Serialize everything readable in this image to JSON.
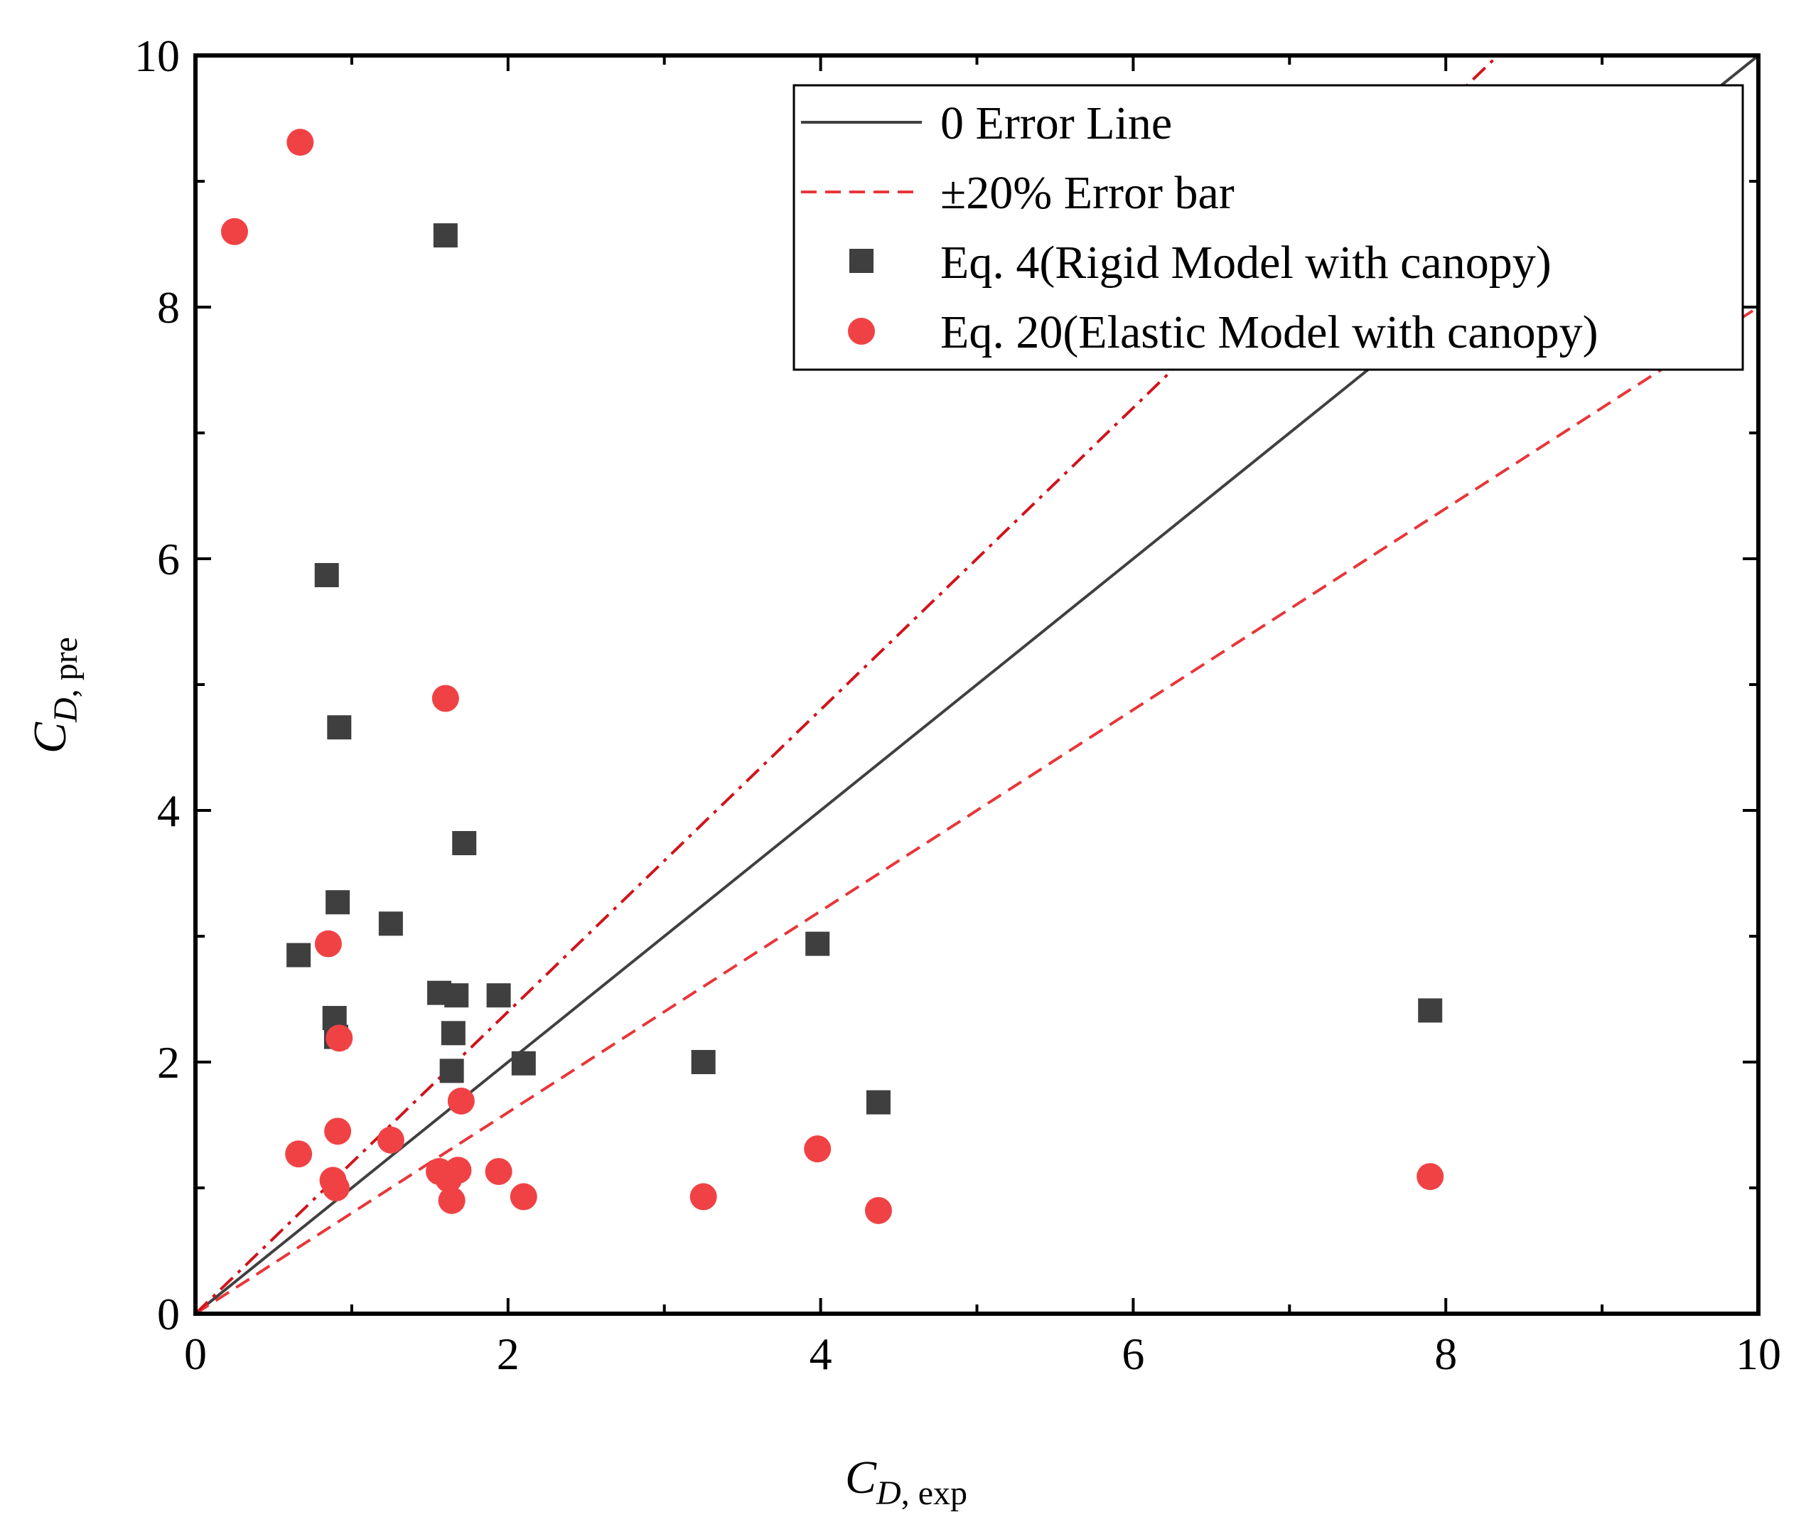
{
  "chart_data": {
    "type": "scatter",
    "title": "",
    "xlabel": {
      "main": "C",
      "sub1": "D",
      "sub2": ", exp"
    },
    "ylabel": {
      "main": "C",
      "sub1": "D",
      "sub2": ", pre"
    },
    "xlim": [
      0,
      10
    ],
    "ylim": [
      0,
      10
    ],
    "xticks": [
      0,
      2,
      4,
      6,
      8,
      10
    ],
    "yticks": [
      0,
      2,
      4,
      6,
      8,
      10
    ],
    "grid": false,
    "legend_position": "top-right",
    "lines": [
      {
        "name": "0 Error Line",
        "slope": 1.0,
        "color": "#404040",
        "style": "solid"
      },
      {
        "name": "±20% Error bar",
        "slope": 0.8,
        "color": "#e8363a",
        "style": "dashed"
      },
      {
        "name": "+20% Error bar",
        "slope": 1.2,
        "color": "#d0141c",
        "style": "dashdot",
        "legend": false
      }
    ],
    "series": [
      {
        "name": "Eq. 4(Rigid Model with canopy)",
        "marker": "square",
        "color": "#3f3f3f",
        "points": [
          [
            0.66,
            2.85
          ],
          [
            0.84,
            5.87
          ],
          [
            0.89,
            2.35
          ],
          [
            0.9,
            2.2
          ],
          [
            0.91,
            3.27
          ],
          [
            0.92,
            4.66
          ],
          [
            1.25,
            3.1
          ],
          [
            1.56,
            2.55
          ],
          [
            1.6,
            8.57
          ],
          [
            1.65,
            2.23
          ],
          [
            1.64,
            1.93
          ],
          [
            1.67,
            2.53
          ],
          [
            1.72,
            3.74
          ],
          [
            1.94,
            2.53
          ],
          [
            2.1,
            1.99
          ],
          [
            3.25,
            2.0
          ],
          [
            3.98,
            2.94
          ],
          [
            4.37,
            1.68
          ],
          [
            7.9,
            2.41
          ]
        ]
      },
      {
        "name": "Eq. 20(Elastic Model with canopy)",
        "marker": "circle",
        "color": "#f04245",
        "points": [
          [
            0.25,
            8.6
          ],
          [
            0.67,
            9.31
          ],
          [
            0.66,
            1.27
          ],
          [
            0.85,
            2.94
          ],
          [
            0.88,
            1.06
          ],
          [
            0.9,
            1.0
          ],
          [
            0.91,
            1.45
          ],
          [
            0.92,
            2.19
          ],
          [
            1.25,
            1.38
          ],
          [
            1.56,
            1.13
          ],
          [
            1.6,
            4.89
          ],
          [
            1.62,
            1.07
          ],
          [
            1.64,
            0.9
          ],
          [
            1.68,
            1.14
          ],
          [
            1.7,
            1.69
          ],
          [
            1.94,
            1.13
          ],
          [
            2.1,
            0.93
          ],
          [
            3.25,
            0.93
          ],
          [
            3.98,
            1.31
          ],
          [
            4.37,
            0.82
          ],
          [
            7.9,
            1.09
          ]
        ]
      }
    ]
  }
}
